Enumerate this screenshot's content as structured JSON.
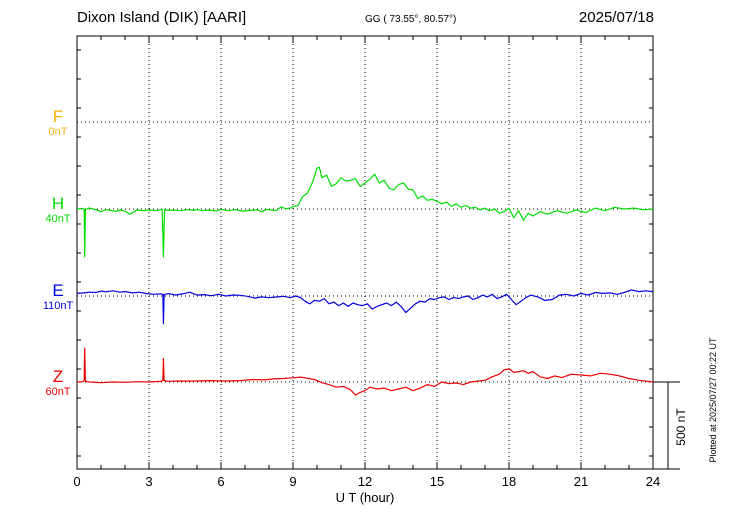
{
  "header": {
    "station": "Dixon Island (DIK)  [AARI]",
    "coords": "GG ( 73.55°,  80.57°)",
    "date": "2025/07/18"
  },
  "side_note": "Plotted at 2025/07/27 00:22 UT",
  "chart_data": {
    "type": "line",
    "title": "Dixon Island (DIK)  [AARI]",
    "xlabel": "U T (hour)",
    "xlim": [
      0,
      24
    ],
    "xticks": [
      "0",
      "3",
      "6",
      "9",
      "12",
      "15",
      "18",
      "21",
      "24"
    ],
    "scale_bar": {
      "label": "500 nT",
      "value_nT": 500
    },
    "grid": true,
    "colors": {
      "F": "#f5b400",
      "H": "#00dd00",
      "E": "#0000dd",
      "Z": "#ee0000"
    },
    "series": [
      {
        "name": "F",
        "offset_label": "0nT",
        "x": [],
        "y": []
      },
      {
        "name": "H",
        "offset_label": "40nT",
        "x": [
          0,
          0.25,
          0.3,
          0.32,
          0.35,
          0.5,
          0.8,
          1.0,
          1.2,
          1.4,
          1.6,
          1.8,
          2.0,
          2.2,
          2.5,
          2.8,
          3.0,
          3.3,
          3.55,
          3.6,
          3.65,
          3.8,
          4.0,
          4.3,
          4.6,
          4.9,
          5.0,
          5.2,
          5.5,
          5.8,
          6.0,
          6.3,
          6.6,
          6.9,
          7.2,
          7.5,
          7.7,
          7.9,
          8.1,
          8.3,
          8.5,
          8.7,
          8.9,
          9.0,
          9.2,
          9.4,
          9.6,
          9.8,
          10.0,
          10.1,
          10.2,
          10.4,
          10.6,
          10.8,
          11.0,
          11.2,
          11.4,
          11.6,
          11.8,
          12.0,
          12.2,
          12.4,
          12.6,
          12.8,
          13.0,
          13.2,
          13.4,
          13.6,
          13.8,
          14.0,
          14.2,
          14.4,
          14.6,
          14.8,
          15.0,
          15.2,
          15.4,
          15.6,
          15.8,
          16.0,
          16.2,
          16.4,
          16.6,
          16.8,
          17.0,
          17.2,
          17.4,
          17.6,
          17.8,
          18.0,
          18.2,
          18.4,
          18.6,
          18.8,
          19.0,
          19.3,
          19.6,
          20.0,
          20.4,
          20.8,
          21.2,
          21.6,
          22.0,
          22.4,
          22.8,
          23.2,
          23.6,
          24.0
        ],
        "y": [
          0,
          4,
          -2,
          -275,
          -4,
          6,
          -4,
          -16,
          -4,
          -8,
          -14,
          -6,
          -12,
          -30,
          -6,
          -10,
          -6,
          -10,
          -2,
          -275,
          -4,
          -8,
          -6,
          -10,
          -4,
          -8,
          -2,
          -10,
          -6,
          -12,
          -2,
          -10,
          -4,
          -12,
          -8,
          -4,
          -16,
          -2,
          -6,
          -10,
          12,
          2,
          6,
          14,
          20,
          70,
          92,
          150,
          234,
          240,
          180,
          195,
          130,
          145,
          180,
          160,
          165,
          175,
          130,
          150,
          170,
          200,
          150,
          165,
          120,
          110,
          140,
          150,
          115,
          110,
          60,
          75,
          50,
          55,
          45,
          30,
          40,
          15,
          30,
          10,
          20,
          5,
          10,
          -5,
          5,
          -10,
          0,
          -25,
          -15,
          5,
          -50,
          -10,
          -65,
          -25,
          -40,
          -15,
          -30,
          -10,
          -25,
          -5,
          -20,
          5,
          -10,
          10,
          0,
          5,
          -5,
          0
        ]
      },
      {
        "name": "E",
        "offset_label": "110nT",
        "x": [
          0,
          0.3,
          0.5,
          0.8,
          1.0,
          1.2,
          1.5,
          1.8,
          2.0,
          2.3,
          2.6,
          2.9,
          3.2,
          3.5,
          3.58,
          3.6,
          3.63,
          3.8,
          4.1,
          4.4,
          4.7,
          5.0,
          5.3,
          5.6,
          5.9,
          6.2,
          6.5,
          6.8,
          7.1,
          7.4,
          7.7,
          8.0,
          8.3,
          8.6,
          8.9,
          9.1,
          9.3,
          9.5,
          9.7,
          9.9,
          10.1,
          10.3,
          10.5,
          10.7,
          10.9,
          11.1,
          11.3,
          11.5,
          11.7,
          11.9,
          12.1,
          12.3,
          12.5,
          12.7,
          12.9,
          13.1,
          13.3,
          13.5,
          13.7,
          13.9,
          14.1,
          14.3,
          14.5,
          14.7,
          14.9,
          15.1,
          15.3,
          15.5,
          15.7,
          15.9,
          16.1,
          16.3,
          16.5,
          16.7,
          16.9,
          17.1,
          17.3,
          17.5,
          17.7,
          17.9,
          18.1,
          18.3,
          18.5,
          18.7,
          18.9,
          19.2,
          19.5,
          19.8,
          20.1,
          20.4,
          20.7,
          21.0,
          21.3,
          21.6,
          21.9,
          22.2,
          22.5,
          22.8,
          23.1,
          23.4,
          23.7,
          24.0
        ],
        "y": [
          15,
          18,
          22,
          20,
          28,
          24,
          30,
          22,
          26,
          18,
          22,
          14,
          10,
          12,
          10,
          -160,
          8,
          14,
          6,
          12,
          22,
          5,
          8,
          2,
          10,
          0,
          6,
          4,
          -2,
          -12,
          -5,
          -10,
          -6,
          -2,
          -10,
          0,
          -8,
          -30,
          -45,
          -25,
          -30,
          -15,
          -45,
          -35,
          -55,
          -40,
          -60,
          -40,
          -50,
          -55,
          -45,
          -75,
          -60,
          -50,
          -40,
          -55,
          -35,
          -60,
          -95,
          -70,
          -45,
          -30,
          -35,
          -15,
          -20,
          -10,
          -5,
          -20,
          -8,
          -15,
          -5,
          0,
          -20,
          -10,
          5,
          -5,
          10,
          -15,
          -5,
          10,
          -20,
          -50,
          -30,
          -10,
          5,
          -5,
          -25,
          -20,
          5,
          10,
          0,
          15,
          5,
          20,
          15,
          18,
          10,
          20,
          35,
          25,
          30,
          25
        ]
      },
      {
        "name": "Z",
        "offset_label": "60nT",
        "x": [
          0,
          0.25,
          0.3,
          0.32,
          0.35,
          0.5,
          1.0,
          1.5,
          2.0,
          2.5,
          3.0,
          3.5,
          3.58,
          3.6,
          3.63,
          3.8,
          4.2,
          4.8,
          5.5,
          6.2,
          6.8,
          7.3,
          7.8,
          8.2,
          8.6,
          9.0,
          9.3,
          9.6,
          9.9,
          10.2,
          10.5,
          10.8,
          11.1,
          11.4,
          11.6,
          11.8,
          12.0,
          12.2,
          12.5,
          12.8,
          13.1,
          13.4,
          13.7,
          14.0,
          14.3,
          14.6,
          14.9,
          15.2,
          15.5,
          15.8,
          16.1,
          16.4,
          16.7,
          17.0,
          17.3,
          17.6,
          17.8,
          18.0,
          18.2,
          18.4,
          18.6,
          18.8,
          19.0,
          19.3,
          19.6,
          19.9,
          20.2,
          20.6,
          21.0,
          21.4,
          21.8,
          22.2,
          22.6,
          23.0,
          23.4,
          23.7,
          24.0
        ],
        "y": [
          0,
          2,
          10,
          195,
          5,
          0,
          -4,
          0,
          -2,
          2,
          0,
          4,
          10,
          135,
          8,
          4,
          6,
          5,
          8,
          6,
          8,
          14,
          12,
          18,
          20,
          24,
          28,
          22,
          14,
          -4,
          -15,
          -30,
          -25,
          -45,
          -75,
          -60,
          -50,
          -30,
          -40,
          -35,
          -50,
          -40,
          -30,
          -50,
          -35,
          -15,
          -25,
          0,
          -10,
          -5,
          -15,
          0,
          5,
          10,
          30,
          45,
          70,
          75,
          55,
          60,
          65,
          50,
          60,
          30,
          20,
          35,
          25,
          45,
          40,
          35,
          50,
          45,
          35,
          20,
          10,
          5,
          0
        ]
      }
    ]
  }
}
